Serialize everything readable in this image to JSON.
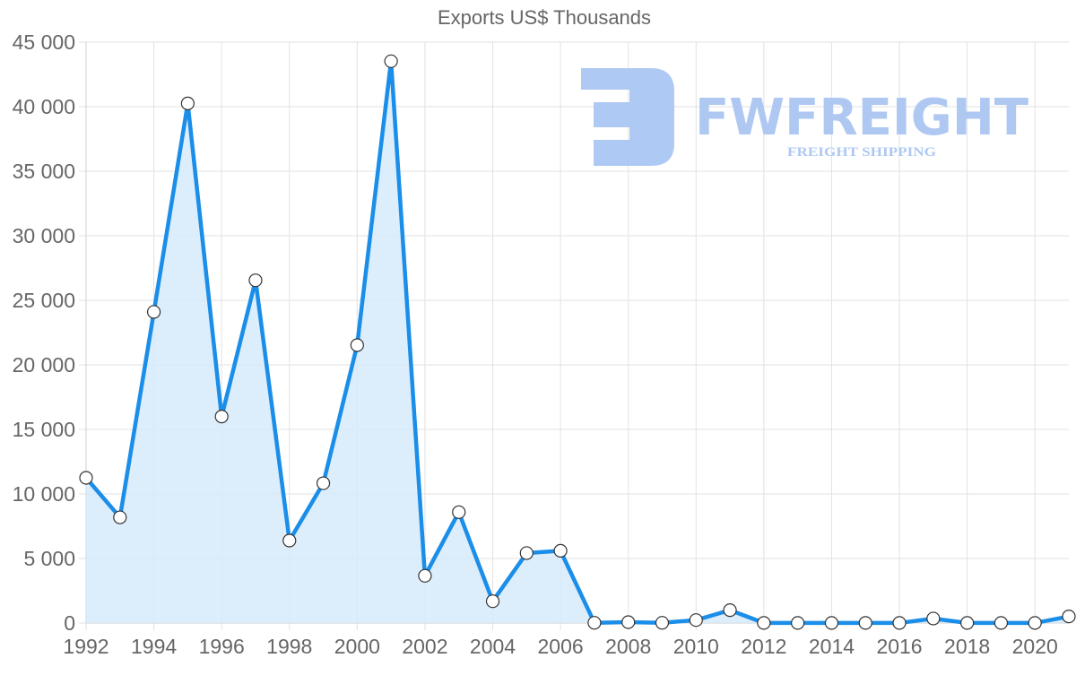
{
  "title": "Exports US$ Thousands",
  "watermark": {
    "brand": "FWFREIGHT",
    "tagline": "FREIGHT SHIPPING",
    "color": "#aac6f2"
  },
  "colors": {
    "line": "#1a8ee8",
    "fill": "#d6eafb",
    "grid": "#e2e2e2",
    "point_fill": "#ffffff",
    "point_stroke": "#333333",
    "text": "#666666"
  },
  "chart_data": {
    "type": "area",
    "title": "Exports US$ Thousands",
    "xlabel": "",
    "ylabel": "",
    "x": [
      1992,
      1993,
      1994,
      1995,
      1996,
      1997,
      1998,
      1999,
      2000,
      2001,
      2002,
      2003,
      2004,
      2005,
      2006,
      2007,
      2008,
      2009,
      2010,
      2011,
      2012,
      2013,
      2014,
      2015,
      2016,
      2017,
      2018,
      2019,
      2020,
      2021
    ],
    "series": [
      {
        "name": "Exports US$ Thousands",
        "values": [
          11250,
          8190,
          24100,
          40250,
          16000,
          26550,
          6390,
          10830,
          21530,
          43520,
          3660,
          8590,
          1690,
          5420,
          5600,
          20,
          70,
          20,
          230,
          1000,
          10,
          10,
          10,
          10,
          10,
          350,
          10,
          10,
          10,
          510
        ]
      }
    ],
    "y_ticks": [
      "0",
      "5 000",
      "10 000",
      "15 000",
      "20 000",
      "25 000",
      "30 000",
      "35 000",
      "40 000",
      "45 000"
    ],
    "x_ticks": [
      "1992",
      "1994",
      "1996",
      "1998",
      "2000",
      "2002",
      "2004",
      "2006",
      "2008",
      "2010",
      "2012",
      "2014",
      "2016",
      "2018",
      "2020"
    ],
    "ylim": [
      0,
      45000
    ],
    "xlim": [
      1992,
      2021
    ],
    "grid": true,
    "legend": "none"
  }
}
